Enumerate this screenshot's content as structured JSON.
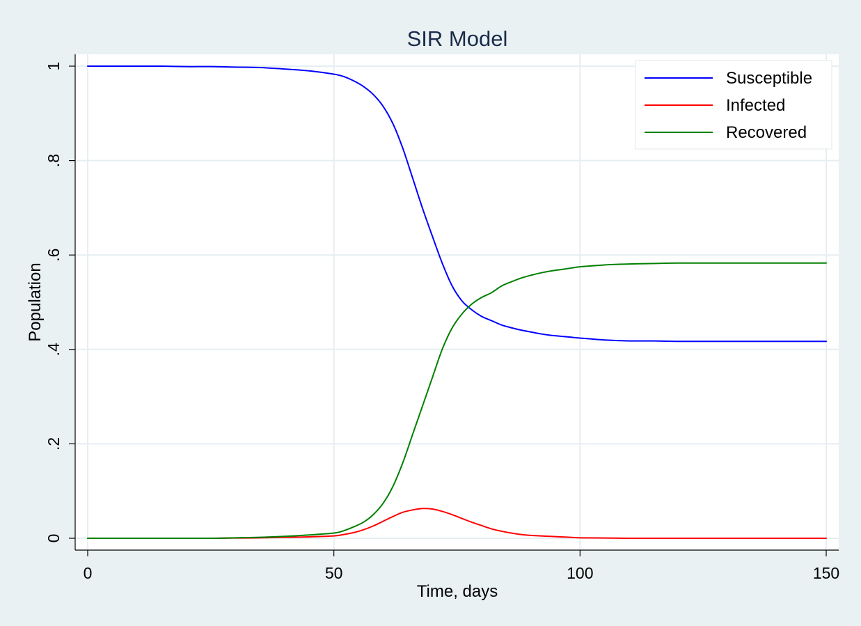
{
  "chart_data": {
    "type": "line",
    "title": "SIR Model",
    "xlabel": "Time, days",
    "ylabel": "Population",
    "xlim": [
      0,
      150
    ],
    "ylim": [
      0,
      1
    ],
    "x_ticks": [
      0,
      50,
      100,
      150
    ],
    "x_tick_labels": [
      "0",
      "50",
      "100",
      "150"
    ],
    "y_ticks": [
      0,
      0.2,
      0.4,
      0.6,
      0.8,
      1
    ],
    "y_tick_labels": [
      "0",
      ".2",
      ".4",
      ".6",
      ".8",
      "1"
    ],
    "grid": true,
    "legend_position": "top-right",
    "x": [
      0,
      5,
      10,
      15,
      20,
      25,
      30,
      35,
      40,
      45,
      50,
      52,
      54,
      56,
      58,
      60,
      62,
      64,
      66,
      68,
      70,
      72,
      74,
      76,
      78,
      80,
      82,
      84,
      86,
      88,
      90,
      92,
      94,
      96,
      98,
      100,
      105,
      110,
      115,
      120,
      130,
      140,
      150
    ],
    "series": [
      {
        "name": "Susceptible",
        "color": "#0000ff",
        "values": [
          1.0,
          1.0,
          1.0,
          1.0,
          0.999,
          0.999,
          0.998,
          0.997,
          0.994,
          0.99,
          0.983,
          0.978,
          0.969,
          0.957,
          0.94,
          0.915,
          0.878,
          0.826,
          0.763,
          0.699,
          0.64,
          0.583,
          0.535,
          0.503,
          0.484,
          0.47,
          0.461,
          0.452,
          0.446,
          0.441,
          0.437,
          0.433,
          0.43,
          0.428,
          0.426,
          0.424,
          0.42,
          0.418,
          0.418,
          0.417,
          0.417,
          0.417,
          0.417
        ]
      },
      {
        "name": "Infected",
        "color": "#ff0000",
        "values": [
          0.0,
          0.0,
          0.0,
          0.0,
          0.0,
          0.0,
          0.0005,
          0.001,
          0.002,
          0.003,
          0.005,
          0.008,
          0.012,
          0.018,
          0.026,
          0.036,
          0.046,
          0.055,
          0.06,
          0.063,
          0.062,
          0.057,
          0.05,
          0.042,
          0.034,
          0.027,
          0.02,
          0.015,
          0.011,
          0.008,
          0.006,
          0.005,
          0.004,
          0.003,
          0.002,
          0.001,
          0.0005,
          0.0,
          0.0,
          0.0,
          0.0,
          0.0,
          0.0
        ]
      },
      {
        "name": "Recovered",
        "color": "#008000",
        "values": [
          0.0,
          0.0,
          0.0,
          0.0,
          0.0,
          0.0,
          0.001,
          0.002,
          0.004,
          0.007,
          0.011,
          0.016,
          0.024,
          0.034,
          0.05,
          0.074,
          0.11,
          0.16,
          0.22,
          0.28,
          0.34,
          0.4,
          0.445,
          0.475,
          0.496,
          0.51,
          0.52,
          0.534,
          0.543,
          0.551,
          0.557,
          0.562,
          0.566,
          0.569,
          0.572,
          0.575,
          0.579,
          0.581,
          0.582,
          0.583,
          0.583,
          0.583,
          0.583
        ]
      }
    ]
  }
}
